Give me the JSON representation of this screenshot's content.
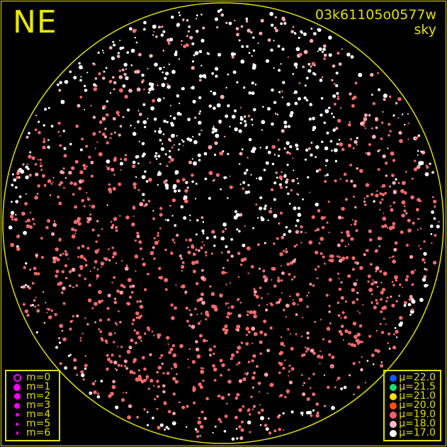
{
  "title": "NE",
  "frame_id": "03k61105o0577w",
  "frame_type": "sky",
  "colors": {
    "circle": "#e0e000",
    "text": "#e0e000",
    "magnitude_symbol": "#ff00ff"
  },
  "magnitude_legend": [
    {
      "label": "m=0",
      "style": "ring"
    },
    {
      "label": "m=1",
      "style": "dot"
    },
    {
      "label": "m=2",
      "style": "dot"
    },
    {
      "label": "m=3",
      "style": "dot"
    },
    {
      "label": "m=4",
      "style": "dot"
    },
    {
      "label": "m=5",
      "style": "dot"
    },
    {
      "label": "m=6",
      "style": "dot"
    }
  ],
  "mu_legend": [
    {
      "label": "μ=22.0",
      "color": "#1058f0"
    },
    {
      "label": "μ=21.5",
      "color": "#10e070"
    },
    {
      "label": "μ=21.0",
      "color": "#ffe000"
    },
    {
      "label": "μ=20.0",
      "color": "#ff5010"
    },
    {
      "label": "μ=19.0",
      "color": "#f06070"
    },
    {
      "label": "μ=18.0",
      "color": "#ffb8c8"
    },
    {
      "label": "μ=17.0",
      "color": "#ffffff"
    }
  ]
}
